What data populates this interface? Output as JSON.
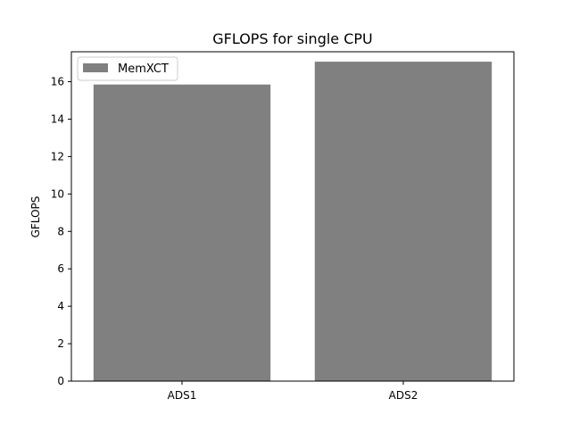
{
  "chart_data": {
    "type": "bar",
    "title": "GFLOPS for single CPU",
    "xlabel": "",
    "ylabel": "GFLOPS",
    "categories": [
      "ADS1",
      "ADS2"
    ],
    "series": [
      {
        "name": "MemXCT",
        "values": [
          15.85,
          17.07
        ],
        "color": "#808080"
      }
    ],
    "ylim": [
      0,
      17.6
    ],
    "yticks": [
      0,
      2,
      4,
      6,
      8,
      10,
      12,
      14,
      16
    ],
    "grid": false,
    "legend": {
      "position": "top-left"
    }
  }
}
